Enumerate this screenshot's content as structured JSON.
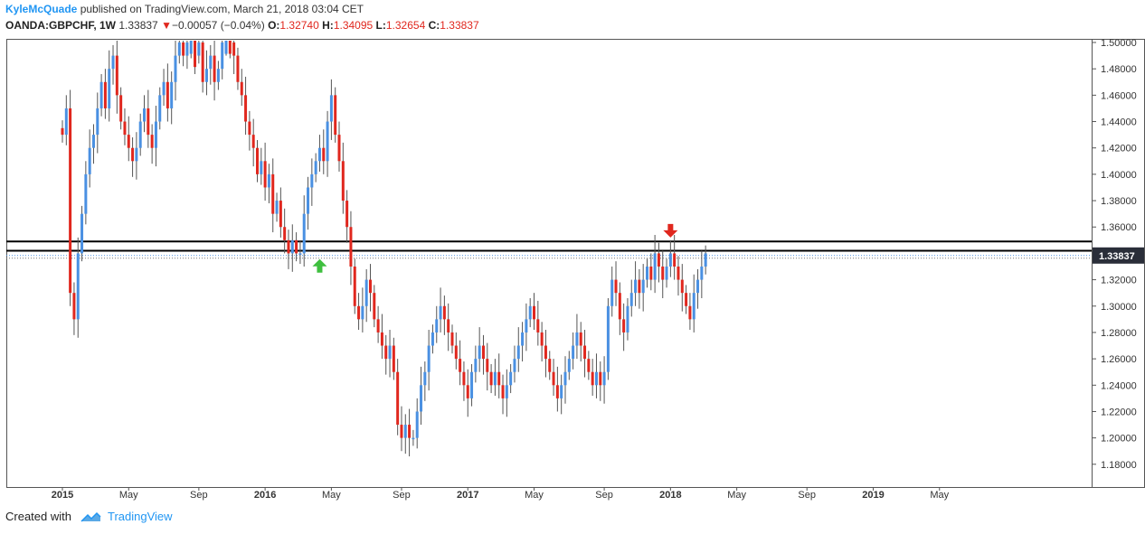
{
  "header": {
    "author": "KyleMcQuade",
    "published_text": "published on TradingView.com, March 21, 2018 03:04 CET",
    "symbol": "OANDA:GBPCHF, 1W",
    "last": "1.33837",
    "change": "−0.00057 (−0.04%)",
    "open_label": "O:",
    "open": "1.32740",
    "high_label": "H:",
    "high": "1.34095",
    "low_label": "L:",
    "low": "1.32654",
    "close_label": "C:",
    "close": "1.33837",
    "down_arrow": "▼"
  },
  "footer": {
    "created_with": "Created with",
    "brand": "TradingView",
    "logo_icon": "tradingview-cloud-icon"
  },
  "colors": {
    "up": "#4a90e2",
    "down": "#e0271e",
    "arrow_up": "#3fbf3f",
    "arrow_down": "#e0271e",
    "price_label_bg": "#2a2e39"
  },
  "chart_data": {
    "type": "candlestick",
    "symbol": "OANDA:GBPCHF",
    "timeframe": "1W",
    "ylim": [
      1.16,
      1.5
    ],
    "y_ticks": [
      "1.50000",
      "1.48000",
      "1.46000",
      "1.44000",
      "1.42000",
      "1.40000",
      "1.38000",
      "1.36000",
      "1.34000",
      "1.32000",
      "1.30000",
      "1.28000",
      "1.26000",
      "1.24000",
      "1.22000",
      "1.20000",
      "1.18000"
    ],
    "x_ticks": [
      {
        "label": "2015",
        "bold": true,
        "week": 0
      },
      {
        "label": "May",
        "bold": false,
        "week": 17
      },
      {
        "label": "Sep",
        "bold": false,
        "week": 35
      },
      {
        "label": "2016",
        "bold": true,
        "week": 52
      },
      {
        "label": "May",
        "bold": false,
        "week": 69
      },
      {
        "label": "Sep",
        "bold": false,
        "week": 87
      },
      {
        "label": "2017",
        "bold": true,
        "week": 104
      },
      {
        "label": "May",
        "bold": false,
        "week": 121
      },
      {
        "label": "Sep",
        "bold": false,
        "week": 139
      },
      {
        "label": "2018",
        "bold": true,
        "week": 156
      },
      {
        "label": "May",
        "bold": false,
        "week": 173
      },
      {
        "label": "Sep",
        "bold": false,
        "week": 191
      },
      {
        "label": "2019",
        "bold": true,
        "week": 208
      },
      {
        "label": "May",
        "bold": false,
        "week": 225
      }
    ],
    "current_price": "1.33837",
    "resistance_zone": [
      1.342,
      1.349
    ],
    "annotations": [
      {
        "type": "arrow-up",
        "week": 66,
        "price": 1.337,
        "color": "green"
      },
      {
        "type": "arrow-down",
        "week": 156,
        "price": 1.352,
        "color": "red"
      }
    ],
    "closes": [
      1.43,
      1.45,
      1.31,
      1.29,
      1.34,
      1.37,
      1.4,
      1.42,
      1.43,
      1.45,
      1.47,
      1.45,
      1.48,
      1.49,
      1.46,
      1.44,
      1.43,
      1.42,
      1.41,
      1.42,
      1.44,
      1.45,
      1.43,
      1.42,
      1.44,
      1.46,
      1.47,
      1.45,
      1.47,
      1.49,
      1.5,
      1.49,
      1.5,
      1.51,
      1.49,
      1.5,
      1.47,
      1.48,
      1.49,
      1.47,
      1.48,
      1.5,
      1.51,
      1.5,
      1.49,
      1.47,
      1.46,
      1.44,
      1.43,
      1.42,
      1.4,
      1.41,
      1.39,
      1.4,
      1.37,
      1.38,
      1.36,
      1.35,
      1.34,
      1.35,
      1.34,
      1.34,
      1.37,
      1.39,
      1.4,
      1.41,
      1.42,
      1.41,
      1.44,
      1.46,
      1.43,
      1.41,
      1.38,
      1.36,
      1.33,
      1.3,
      1.29,
      1.3,
      1.32,
      1.31,
      1.29,
      1.28,
      1.27,
      1.26,
      1.27,
      1.25,
      1.21,
      1.2,
      1.21,
      1.2,
      1.2,
      1.22,
      1.24,
      1.25,
      1.27,
      1.28,
      1.29,
      1.3,
      1.29,
      1.28,
      1.27,
      1.26,
      1.25,
      1.24,
      1.23,
      1.25,
      1.26,
      1.27,
      1.26,
      1.25,
      1.24,
      1.25,
      1.24,
      1.23,
      1.24,
      1.25,
      1.26,
      1.27,
      1.28,
      1.29,
      1.3,
      1.29,
      1.28,
      1.27,
      1.26,
      1.25,
      1.24,
      1.23,
      1.24,
      1.25,
      1.26,
      1.27,
      1.28,
      1.27,
      1.26,
      1.25,
      1.24,
      1.25,
      1.24,
      1.25,
      1.3,
      1.32,
      1.31,
      1.29,
      1.28,
      1.3,
      1.31,
      1.32,
      1.31,
      1.32,
      1.33,
      1.32,
      1.34,
      1.33,
      1.32,
      1.33,
      1.34,
      1.33,
      1.32,
      1.31,
      1.3,
      1.29,
      1.31,
      1.32,
      1.33,
      1.34
    ]
  }
}
